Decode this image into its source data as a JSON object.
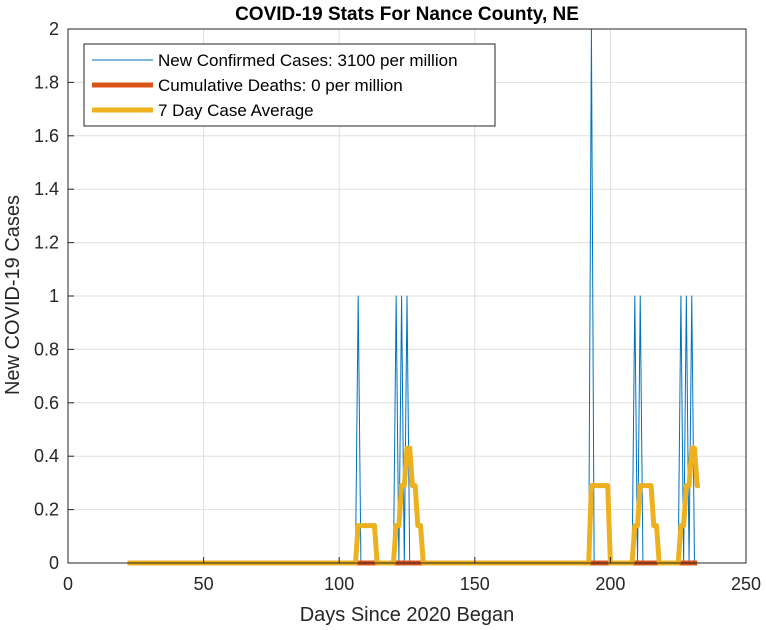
{
  "chart_data": {
    "type": "line",
    "title": "COVID-19 Stats For Nance County, NE",
    "xlabel": "Days Since 2020 Began",
    "ylabel": "New COVID-19 Cases",
    "xlim": [
      0,
      250
    ],
    "ylim": [
      0,
      2
    ],
    "xticks": [
      0,
      50,
      100,
      150,
      200,
      250
    ],
    "yticks": [
      0,
      0.2,
      0.4,
      0.6,
      0.8,
      1,
      1.2,
      1.4,
      1.6,
      1.8,
      2
    ],
    "grid": true,
    "legend_position": "top-left",
    "series": [
      {
        "name": "New Confirmed Cases: 3100 per million",
        "color": "#0072BD",
        "line_width": 1,
        "x": [
          22,
          106,
          107,
          108,
          120,
          121,
          122,
          123,
          124,
          125,
          126,
          127,
          192,
          193,
          194,
          208,
          209,
          210,
          211,
          212,
          225,
          226,
          227,
          228,
          229,
          230,
          231,
          232
        ],
        "y": [
          0,
          0,
          1,
          0,
          0,
          1,
          0,
          1,
          0,
          1,
          0,
          0,
          0,
          2,
          0,
          0,
          1,
          0,
          1,
          0,
          0,
          1,
          0,
          1,
          0,
          1,
          0,
          0
        ]
      },
      {
        "name": "Cumulative Deaths: 0 per million",
        "color": "#D95319",
        "line_width": 5,
        "x": [
          22,
          232
        ],
        "y": [
          0,
          0
        ]
      },
      {
        "name": "7 Day Case Average",
        "color": "#EDB120",
        "line_width": 5,
        "x": [
          22,
          106,
          107,
          108,
          113,
          114,
          120,
          121,
          122,
          123,
          124,
          125,
          126,
          127,
          128,
          129,
          130,
          131,
          192,
          193,
          199,
          200,
          208,
          209,
          210,
          211,
          215,
          216,
          217,
          218,
          225,
          226,
          227,
          228,
          229,
          230,
          231,
          232,
          233
        ],
        "y": [
          0,
          0,
          0.14,
          0.14,
          0.14,
          0,
          0,
          0.14,
          0.14,
          0.29,
          0.29,
          0.43,
          0.43,
          0.29,
          0.29,
          0.14,
          0.14,
          0,
          0,
          0.29,
          0.29,
          0,
          0,
          0.14,
          0.14,
          0.29,
          0.29,
          0.14,
          0.14,
          0,
          0,
          0.14,
          0.14,
          0.29,
          0.29,
          0.43,
          0.43,
          0.29,
          0.29
        ]
      }
    ]
  }
}
